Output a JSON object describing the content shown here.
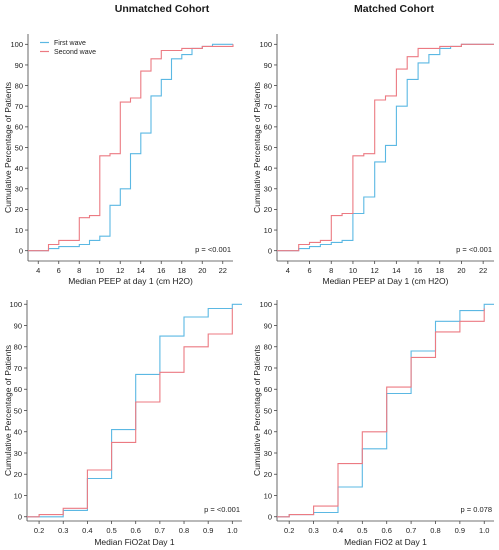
{
  "titles": {
    "left": "Unmatched Cohort",
    "right": "Matched Cohort"
  },
  "colors": {
    "first": "#5bb8e3",
    "second": "#ec7a82",
    "axis": "#444444"
  },
  "chart_data": [
    {
      "type": "line",
      "step": true,
      "xlabel": "Median PEEP at day 1 (cm H2O)",
      "ylabel": "Cumulative Percentage of Patients",
      "xlim": [
        3,
        23
      ],
      "ylim": [
        -5,
        105
      ],
      "xticks": [
        4,
        6,
        8,
        10,
        12,
        14,
        16,
        18,
        20,
        22
      ],
      "yticks": [
        0,
        10,
        20,
        30,
        40,
        50,
        60,
        70,
        80,
        90,
        100
      ],
      "legend": [
        "First wave",
        "Second wave"
      ],
      "legend_position": "top-left",
      "pvalue": "p = <0.001",
      "series": [
        {
          "name": "First wave",
          "x": [
            3,
            5,
            6,
            8,
            9,
            10,
            11,
            12,
            13,
            14,
            15,
            16,
            17,
            18,
            19,
            20,
            21,
            23
          ],
          "y": [
            0,
            1,
            2,
            3,
            5,
            7,
            22,
            30,
            47,
            57,
            75,
            83,
            93,
            95,
            98,
            99,
            100,
            100
          ]
        },
        {
          "name": "Second wave",
          "x": [
            3,
            5,
            6,
            8,
            9,
            10,
            11,
            12,
            13,
            14,
            15,
            16,
            18,
            20,
            23
          ],
          "y": [
            0,
            3,
            5,
            16,
            17,
            46,
            47,
            72,
            74,
            87,
            93,
            97,
            98,
            99,
            100
          ]
        }
      ]
    },
    {
      "type": "line",
      "step": true,
      "xlabel": "Median PEEP at Day 1 (cm H2O)",
      "ylabel": "Cumulative Percentage of Patients",
      "xlim": [
        3,
        23
      ],
      "ylim": [
        -5,
        105
      ],
      "xticks": [
        4,
        6,
        8,
        10,
        12,
        14,
        16,
        18,
        20,
        22
      ],
      "yticks": [
        0,
        10,
        20,
        30,
        40,
        50,
        60,
        70,
        80,
        90,
        100
      ],
      "pvalue": "p = <0.001",
      "series": [
        {
          "name": "First wave",
          "x": [
            3,
            5,
            6,
            7,
            8,
            9,
            10,
            11,
            12,
            13,
            14,
            15,
            16,
            17,
            18,
            19,
            20,
            21,
            23
          ],
          "y": [
            0,
            1,
            2,
            3,
            4,
            5,
            18,
            26,
            43,
            51,
            70,
            83,
            91,
            95,
            98,
            99,
            100,
            100,
            100
          ]
        },
        {
          "name": "Second wave",
          "x": [
            3,
            5,
            6,
            7,
            8,
            9,
            10,
            11,
            12,
            13,
            14,
            15,
            16,
            18,
            20,
            23
          ],
          "y": [
            0,
            3,
            4,
            5,
            17,
            18,
            46,
            47,
            73,
            75,
            88,
            94,
            98,
            99,
            100,
            100
          ]
        }
      ]
    },
    {
      "type": "line",
      "step": true,
      "xlabel": "Median FiO2at Day 1",
      "ylabel": "Cumulative Percentage of Patients",
      "xlim": [
        0.15,
        1.04
      ],
      "ylim": [
        -2,
        102
      ],
      "xticks": [
        0.2,
        0.3,
        0.4,
        0.5,
        0.6,
        0.7,
        0.8,
        0.9,
        1.0
      ],
      "yticks": [
        0,
        10,
        20,
        30,
        40,
        50,
        60,
        70,
        80,
        90,
        100
      ],
      "pvalue": "p = <0.001",
      "series": [
        {
          "name": "First wave",
          "x": [
            0.15,
            0.2,
            0.3,
            0.4,
            0.5,
            0.6,
            0.7,
            0.8,
            0.9,
            1.0,
            1.04
          ],
          "y": [
            0,
            0,
            3,
            18,
            41,
            67,
            85,
            94,
            98,
            100,
            100
          ]
        },
        {
          "name": "Second wave",
          "x": [
            0.15,
            0.2,
            0.3,
            0.4,
            0.5,
            0.6,
            0.7,
            0.8,
            0.9,
            1.0
          ],
          "y": [
            0,
            1,
            4,
            22,
            35,
            54,
            68,
            80,
            86,
            98
          ]
        }
      ]
    },
    {
      "type": "line",
      "step": true,
      "xlabel": "Median FiO2 at Day 1",
      "ylabel": "Cumulative Percentage of Patients",
      "xlim": [
        0.15,
        1.04
      ],
      "ylim": [
        -2,
        102
      ],
      "xticks": [
        0.2,
        0.3,
        0.4,
        0.5,
        0.6,
        0.7,
        0.8,
        0.9,
        1.0
      ],
      "yticks": [
        0,
        10,
        20,
        30,
        40,
        50,
        60,
        70,
        80,
        90,
        100
      ],
      "pvalue": "p = 0.078",
      "series": [
        {
          "name": "First wave",
          "x": [
            0.15,
            0.2,
            0.3,
            0.4,
            0.5,
            0.6,
            0.7,
            0.8,
            0.9,
            1.0,
            1.04
          ],
          "y": [
            0,
            1,
            2,
            14,
            32,
            58,
            78,
            92,
            97,
            100,
            100
          ]
        },
        {
          "name": "Second wave",
          "x": [
            0.15,
            0.2,
            0.3,
            0.4,
            0.5,
            0.6,
            0.7,
            0.8,
            0.9,
            1.0
          ],
          "y": [
            0,
            1,
            5,
            25,
            40,
            61,
            75,
            87,
            92,
            98
          ]
        }
      ]
    }
  ]
}
